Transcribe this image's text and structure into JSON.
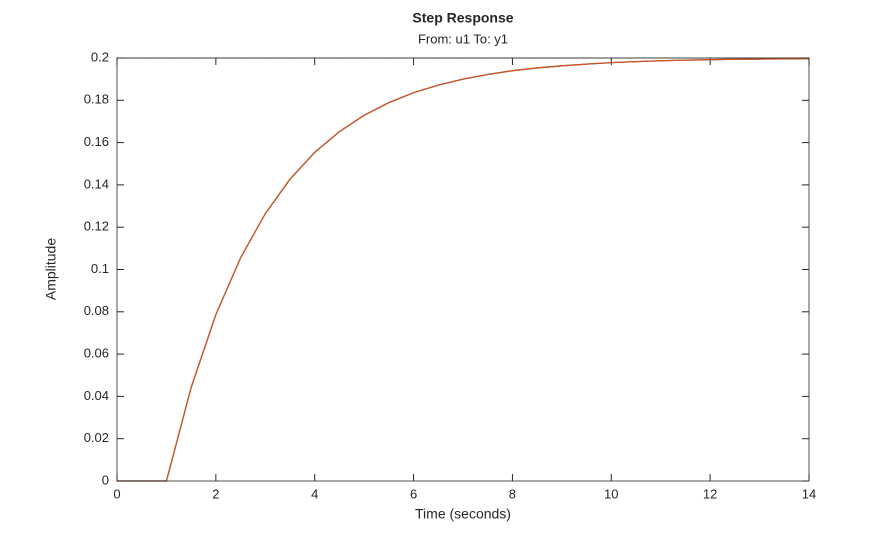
{
  "chart_data": {
    "type": "line",
    "title": "Step Response",
    "subtitle": "From: u1  To: y1",
    "xlabel": "Time (seconds)",
    "ylabel": "Amplitude",
    "x": [
      0,
      0.5,
      1,
      1.5,
      2,
      2.5,
      3,
      3.5,
      4,
      4.5,
      5,
      5.5,
      6,
      6.5,
      7,
      7.5,
      8,
      8.5,
      9,
      9.5,
      10,
      10.5,
      11,
      11.5,
      12,
      12.5,
      13,
      13.5,
      14
    ],
    "series": [
      {
        "color": "#0072bd",
        "values": [
          0,
          0,
          0,
          0.0442,
          0.0787,
          0.1055,
          0.1264,
          0.1427,
          0.1554,
          0.1652,
          0.1729,
          0.1789,
          0.1836,
          0.1872,
          0.19,
          0.1922,
          0.194,
          0.1953,
          0.1963,
          0.1971,
          0.1978,
          0.1983,
          0.1987,
          0.199,
          0.1992,
          0.1994,
          0.1995,
          0.1996,
          0.1997
        ]
      },
      {
        "color": "#d95319",
        "values": [
          0,
          0,
          0,
          0.0442,
          0.0787,
          0.1055,
          0.1264,
          0.1427,
          0.1554,
          0.1652,
          0.1729,
          0.1789,
          0.1836,
          0.1872,
          0.19,
          0.1922,
          0.194,
          0.1953,
          0.1963,
          0.1971,
          0.1978,
          0.1983,
          0.1987,
          0.199,
          0.1992,
          0.1994,
          0.1995,
          0.1996,
          0.1997
        ]
      }
    ],
    "steady_state": 0.2,
    "xlim": [
      0,
      14
    ],
    "xticks": [
      0,
      2,
      4,
      6,
      8,
      10,
      12,
      14
    ],
    "ylim": [
      0,
      0.2
    ],
    "yticks": [
      0,
      0.02,
      0.04,
      0.06,
      0.08,
      0.1,
      0.12,
      0.14,
      0.16,
      0.18,
      0.2
    ]
  }
}
